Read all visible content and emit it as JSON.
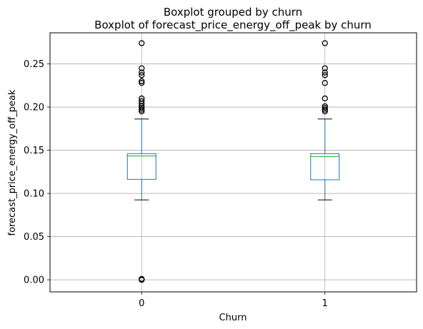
{
  "chart_data": {
    "type": "box",
    "title": "Boxplot grouped by churn",
    "subtitle": "Boxplot of forecast_price_energy_off_peak by churn",
    "xlabel": "Churn",
    "ylabel": "forecast_price_energy_off_peak",
    "ylim": [
      -0.014,
      0.286
    ],
    "yticks": [
      0.0,
      0.05,
      0.1,
      0.15,
      0.2,
      0.25
    ],
    "ytick_labels": [
      "0.00",
      "0.05",
      "0.10",
      "0.15",
      "0.20",
      "0.25"
    ],
    "grid": true,
    "categories": [
      "0",
      "1"
    ],
    "boxes": [
      {
        "category": "0",
        "whisker_low": 0.0925,
        "q1": 0.1163,
        "median": 0.1433,
        "q3": 0.1461,
        "whisker_high": 0.1862,
        "outliers": [
          0.0,
          0.0005,
          0.001,
          0.195,
          0.197,
          0.199,
          0.201,
          0.204,
          0.207,
          0.21,
          0.228,
          0.23,
          0.237,
          0.24,
          0.245,
          0.274
        ]
      },
      {
        "category": "1",
        "whisker_low": 0.0925,
        "q1": 0.1158,
        "median": 0.1427,
        "q3": 0.1461,
        "whisker_high": 0.1862,
        "outliers": [
          0.195,
          0.197,
          0.199,
          0.201,
          0.21,
          0.228,
          0.237,
          0.24,
          0.245,
          0.274
        ]
      }
    ],
    "colors": {
      "box": "#1f77b4",
      "median": "#2ca02c",
      "whisker_cap": "#000000",
      "grid": "#b0b0b0",
      "outlier": "#000000"
    }
  }
}
